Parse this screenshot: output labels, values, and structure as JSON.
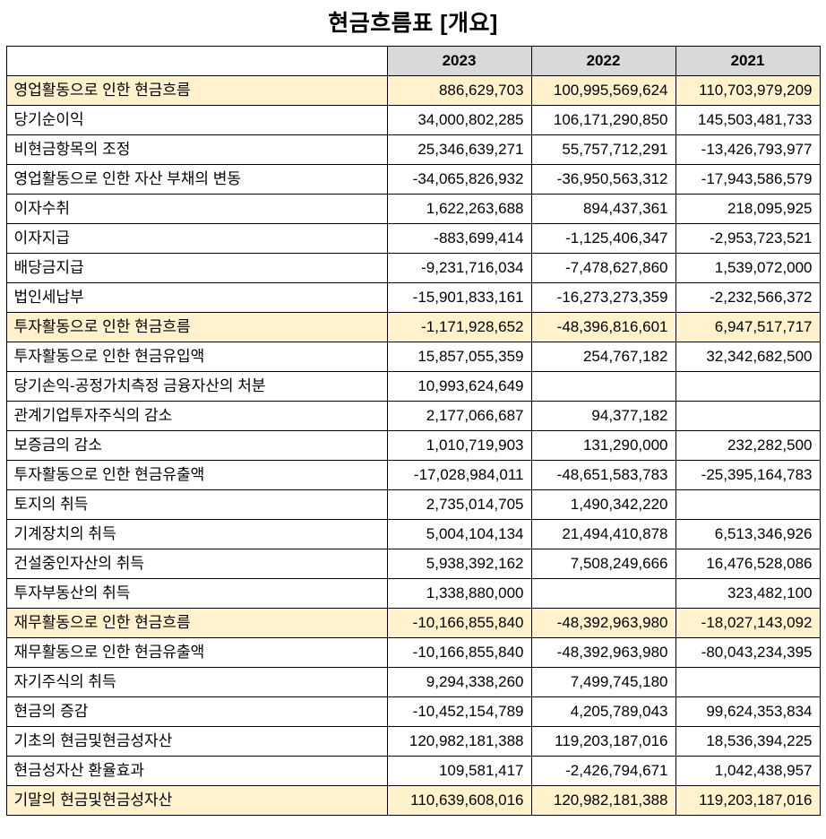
{
  "title": "현금흐름표 [개요]",
  "table": {
    "columns": [
      "2023",
      "2022",
      "2021"
    ],
    "highlight_color": "#fff2cc",
    "header_color": "#d9d9d9",
    "rows": [
      {
        "label": "영업활동으로 인한 현금흐름",
        "indent": 0,
        "highlight": true,
        "values": [
          "886,629,703",
          "100,995,569,624",
          "110,703,979,209"
        ]
      },
      {
        "label": "당기순이익",
        "indent": 1,
        "highlight": false,
        "values": [
          "34,000,802,285",
          "106,171,290,850",
          "145,503,481,733"
        ]
      },
      {
        "label": "비현금항목의 조정",
        "indent": 1,
        "highlight": false,
        "values": [
          "25,346,639,271",
          "55,757,712,291",
          "-13,426,793,977"
        ]
      },
      {
        "label": "영업활동으로 인한 자산 부채의 변동",
        "indent": 1,
        "highlight": false,
        "values": [
          "-34,065,826,932",
          "-36,950,563,312",
          "-17,943,586,579"
        ]
      },
      {
        "label": "이자수취",
        "indent": 1,
        "highlight": false,
        "values": [
          "1,622,263,688",
          "894,437,361",
          "218,095,925"
        ]
      },
      {
        "label": "이자지급",
        "indent": 1,
        "highlight": false,
        "values": [
          "-883,699,414",
          "-1,125,406,347",
          "-2,953,723,521"
        ]
      },
      {
        "label": "배당금지급",
        "indent": 1,
        "highlight": false,
        "values": [
          "-9,231,716,034",
          "-7,478,627,860",
          "1,539,072,000"
        ]
      },
      {
        "label": "법인세납부",
        "indent": 1,
        "highlight": false,
        "values": [
          "-15,901,833,161",
          "-16,273,273,359",
          "-2,232,566,372"
        ]
      },
      {
        "label": "투자활동으로 인한 현금흐름",
        "indent": 0,
        "highlight": true,
        "values": [
          "-1,171,928,652",
          "-48,396,816,601",
          "6,947,517,717"
        ]
      },
      {
        "label": "투자활동으로 인한 현금유입액",
        "indent": 1,
        "highlight": false,
        "values": [
          "15,857,055,359",
          "254,767,182",
          "32,342,682,500"
        ]
      },
      {
        "label": "당기손익-공정가치측정 금융자산의 처분",
        "indent": 2,
        "highlight": false,
        "values": [
          "10,993,624,649",
          "",
          ""
        ]
      },
      {
        "label": "관계기업투자주식의 감소",
        "indent": 2,
        "highlight": false,
        "values": [
          "2,177,066,687",
          "94,377,182",
          ""
        ]
      },
      {
        "label": "보증금의 감소",
        "indent": 2,
        "highlight": false,
        "values": [
          "1,010,719,903",
          "131,290,000",
          "232,282,500"
        ]
      },
      {
        "label": "투자활동으로 인한 현금유출액",
        "indent": 1,
        "highlight": false,
        "values": [
          "-17,028,984,011",
          "-48,651,583,783",
          "-25,395,164,783"
        ]
      },
      {
        "label": "토지의 취득",
        "indent": 2,
        "highlight": false,
        "values": [
          "2,735,014,705",
          "1,490,342,220",
          ""
        ]
      },
      {
        "label": "기계장치의 취득",
        "indent": 2,
        "highlight": false,
        "values": [
          "5,004,104,134",
          "21,494,410,878",
          "6,513,346,926"
        ]
      },
      {
        "label": "건설중인자산의 취득",
        "indent": 2,
        "highlight": false,
        "values": [
          "5,938,392,162",
          "7,508,249,666",
          "16,476,528,086"
        ]
      },
      {
        "label": "투자부동산의 취득",
        "indent": 2,
        "highlight": false,
        "values": [
          "1,338,880,000",
          "",
          "323,482,100"
        ]
      },
      {
        "label": "재무활동으로 인한 현금흐름",
        "indent": 0,
        "highlight": true,
        "values": [
          "-10,166,855,840",
          "-48,392,963,980",
          "-18,027,143,092"
        ]
      },
      {
        "label": "재무활동으로 인한 현금유출액",
        "indent": 1,
        "highlight": false,
        "values": [
          "-10,166,855,840",
          "-48,392,963,980",
          "-80,043,234,395"
        ]
      },
      {
        "label": "자기주식의 취득",
        "indent": 1,
        "highlight": false,
        "values": [
          "9,294,338,260",
          "7,499,745,180",
          ""
        ]
      },
      {
        "label": "현금의 증감",
        "indent": 0,
        "highlight": false,
        "values": [
          "-10,452,154,789",
          "4,205,789,043",
          "99,624,353,834"
        ]
      },
      {
        "label": "기초의 현금및현금성자산",
        "indent": 0,
        "highlight": false,
        "values": [
          "120,982,181,388",
          "119,203,187,016",
          "18,536,394,225"
        ]
      },
      {
        "label": "현금성자산 환율효과",
        "indent": 0,
        "highlight": false,
        "values": [
          "109,581,417",
          "-2,426,794,671",
          "1,042,438,957"
        ]
      },
      {
        "label": "기말의 현금및현금성자산",
        "indent": 0,
        "highlight": true,
        "values": [
          "110,639,608,016",
          "120,982,181,388",
          "119,203,187,016"
        ]
      }
    ]
  }
}
